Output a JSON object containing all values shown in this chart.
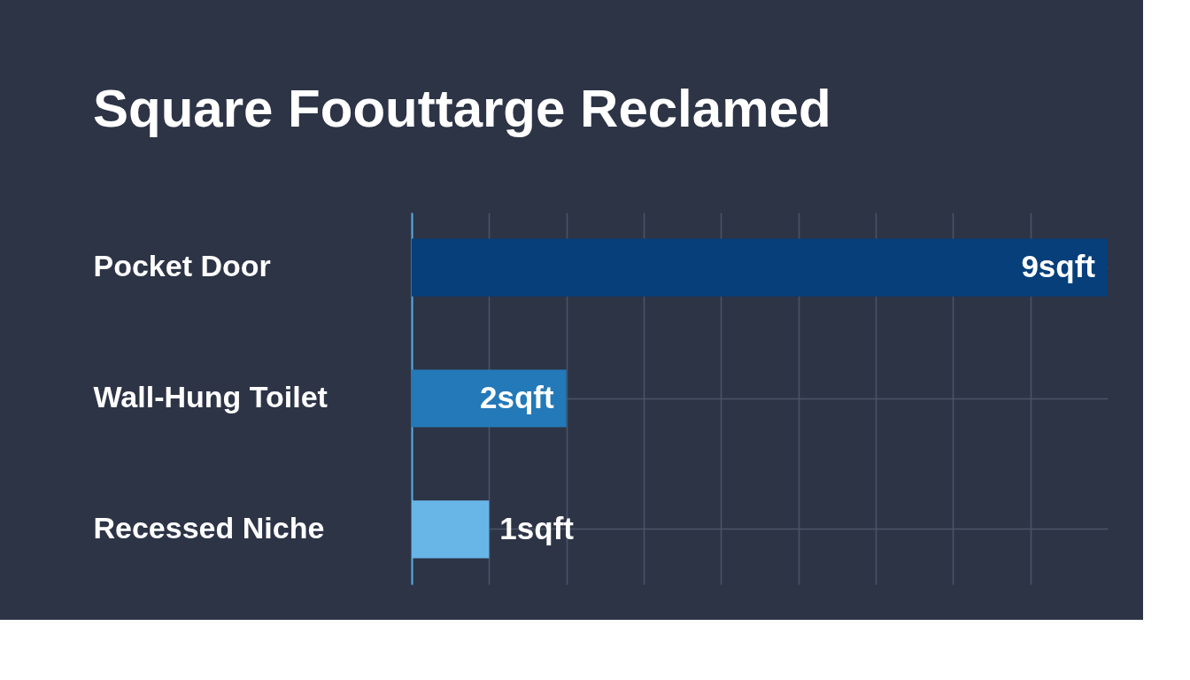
{
  "chart_data": {
    "type": "bar",
    "orientation": "horizontal",
    "title": "Square Foouttarge Reclamed",
    "categories": [
      "Pocket Door",
      "Wall-Hung Toilet",
      "Recessed Niche"
    ],
    "values": [
      9,
      2,
      1
    ],
    "colors": [
      "#063f7a",
      "#2479b8",
      "#68b6e8"
    ],
    "value_labels": [
      "9sqft",
      "2sqft",
      "1sqft"
    ],
    "xlim": [
      0,
      9
    ],
    "xticks": [
      {
        "value": 1,
        "label": null
      },
      {
        "value": 2,
        "label": null
      },
      {
        "value": 3,
        "label": null
      },
      {
        "value": 4,
        "label": null
      },
      {
        "value": 5,
        "label": null
      },
      {
        "value": 6,
        "label": null
      },
      {
        "value": 7,
        "label": null
      },
      {
        "value": 8,
        "label": null
      }
    ],
    "grid": true,
    "tick_labels": "y"
  }
}
